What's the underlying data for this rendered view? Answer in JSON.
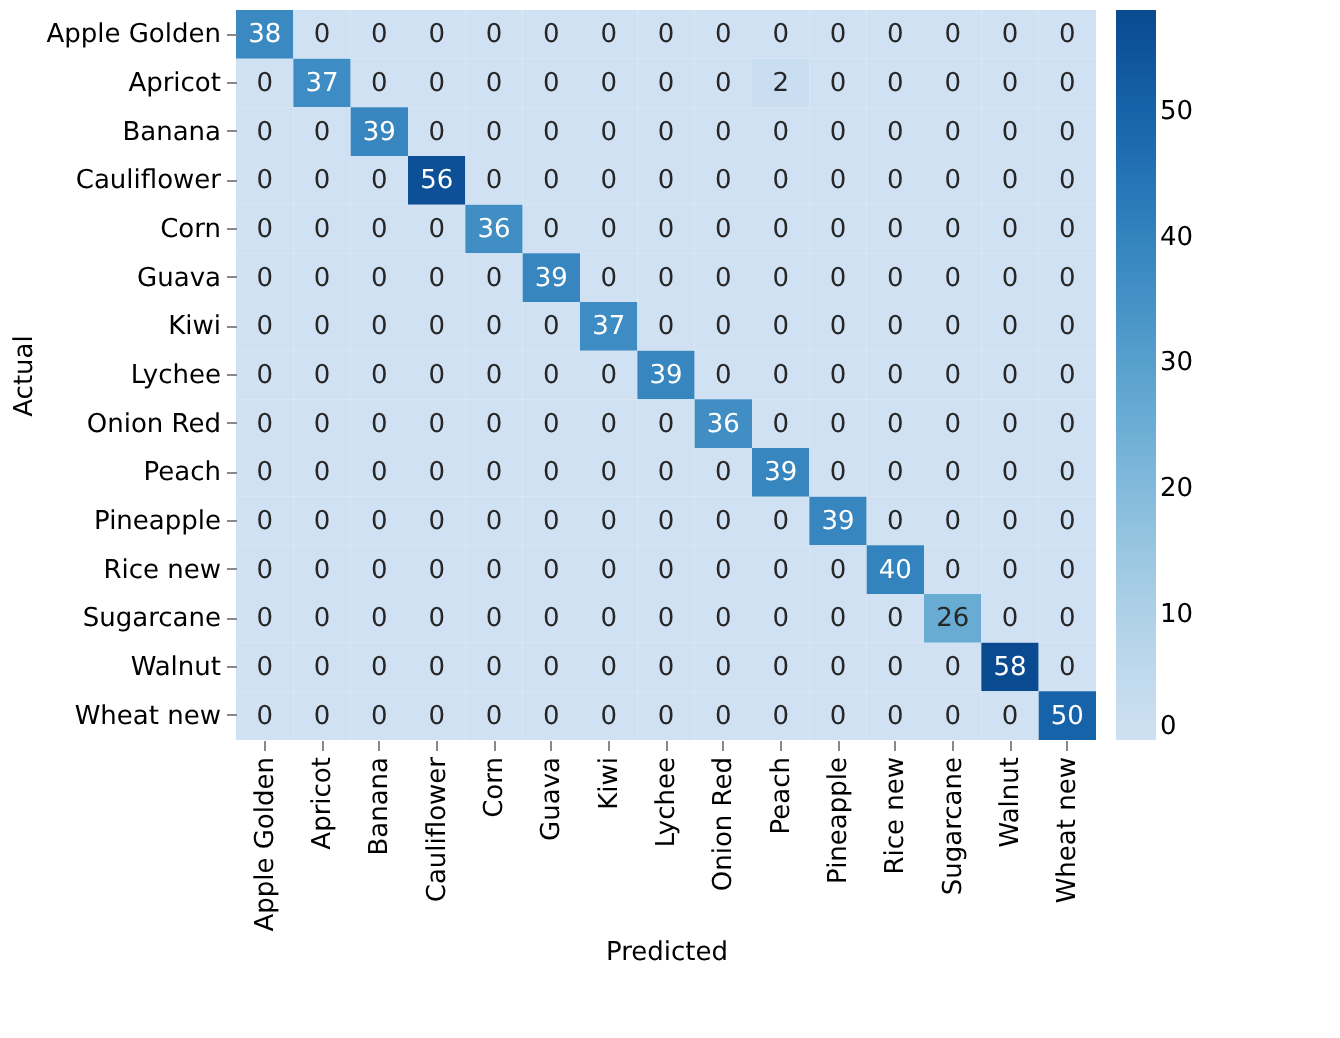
{
  "chart_data": {
    "type": "heatmap",
    "xlabel": "Predicted",
    "ylabel": "Actual",
    "categories": [
      "Apple Golden",
      "Apricot",
      "Banana",
      "Cauliflower",
      "Corn",
      "Guava",
      "Kiwi",
      "Lychee",
      "Onion Red",
      "Peach",
      "Pineapple",
      "Rice new",
      "Sugarcane",
      "Walnut",
      "Wheat new"
    ],
    "y_categories": [
      "Apple Golden",
      "Apricot",
      "Banana",
      "Cauliflower",
      "Corn",
      "Guava",
      "Kiwi",
      "Lychee",
      "Onion Red",
      "Peach",
      "Pineapple",
      "Rice new",
      "Sugarcane",
      "Walnut",
      "Wheat new"
    ],
    "cells": [
      [
        38,
        0,
        0,
        0,
        0,
        0,
        0,
        0,
        0,
        0,
        0,
        0,
        0,
        0,
        0
      ],
      [
        0,
        37,
        0,
        0,
        0,
        0,
        0,
        0,
        0,
        2,
        0,
        0,
        0,
        0,
        0
      ],
      [
        0,
        0,
        39,
        0,
        0,
        0,
        0,
        0,
        0,
        0,
        0,
        0,
        0,
        0,
        0
      ],
      [
        0,
        0,
        0,
        56,
        0,
        0,
        0,
        0,
        0,
        0,
        0,
        0,
        0,
        0,
        0
      ],
      [
        0,
        0,
        0,
        0,
        36,
        0,
        0,
        0,
        0,
        0,
        0,
        0,
        0,
        0,
        0
      ],
      [
        0,
        0,
        0,
        0,
        0,
        39,
        0,
        0,
        0,
        0,
        0,
        0,
        0,
        0,
        0
      ],
      [
        0,
        0,
        0,
        0,
        0,
        0,
        37,
        0,
        0,
        0,
        0,
        0,
        0,
        0,
        0
      ],
      [
        0,
        0,
        0,
        0,
        0,
        0,
        0,
        39,
        0,
        0,
        0,
        0,
        0,
        0,
        0
      ],
      [
        0,
        0,
        0,
        0,
        0,
        0,
        0,
        0,
        36,
        0,
        0,
        0,
        0,
        0,
        0
      ],
      [
        0,
        0,
        0,
        0,
        0,
        0,
        0,
        0,
        0,
        39,
        0,
        0,
        0,
        0,
        0
      ],
      [
        0,
        0,
        0,
        0,
        0,
        0,
        0,
        0,
        0,
        0,
        39,
        0,
        0,
        0,
        0
      ],
      [
        0,
        0,
        0,
        0,
        0,
        0,
        0,
        0,
        0,
        0,
        0,
        40,
        0,
        0,
        0
      ],
      [
        0,
        0,
        0,
        0,
        0,
        0,
        0,
        0,
        0,
        0,
        0,
        0,
        26,
        0,
        0
      ],
      [
        0,
        0,
        0,
        0,
        0,
        0,
        0,
        0,
        0,
        0,
        0,
        0,
        0,
        58,
        0
      ],
      [
        0,
        0,
        0,
        0,
        0,
        0,
        0,
        0,
        0,
        0,
        0,
        0,
        0,
        0,
        50
      ]
    ],
    "data_labels": true,
    "clim": [
      0,
      58
    ],
    "cticks": [
      0,
      10,
      20,
      30,
      40,
      50
    ]
  }
}
